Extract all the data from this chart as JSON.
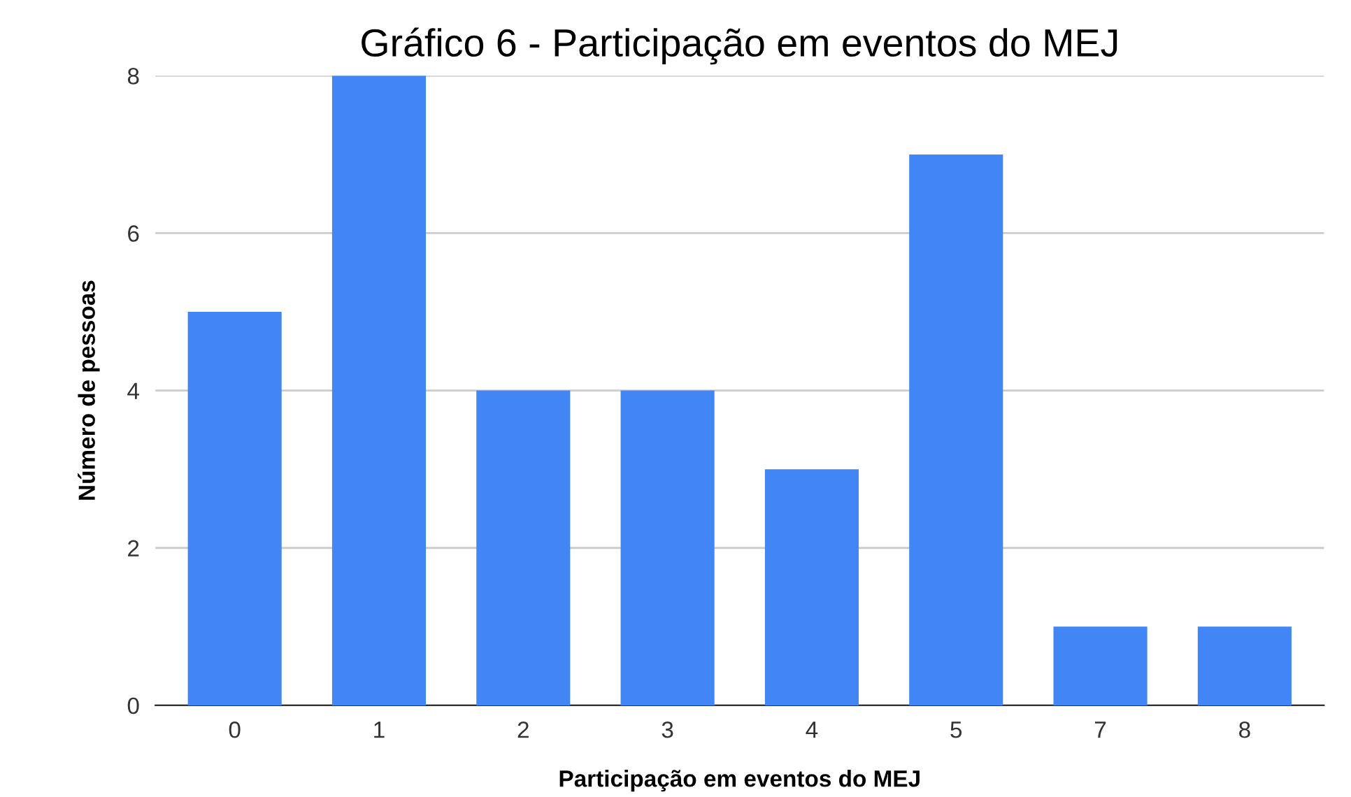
{
  "chart_data": {
    "type": "bar",
    "title": "Gráfico 6 - Participação em eventos do MEJ",
    "xlabel": "Participação em eventos do MEJ",
    "ylabel": "Número de pessoas",
    "categories": [
      "0",
      "1",
      "2",
      "3",
      "4",
      "5",
      "7",
      "8"
    ],
    "values": [
      5,
      8,
      4,
      4,
      3,
      7,
      1,
      1
    ],
    "color": "#4285f4",
    "ylim": [
      0,
      8
    ],
    "yticks": [
      0,
      2,
      4,
      6,
      8
    ],
    "grid": "y",
    "legend": false
  }
}
